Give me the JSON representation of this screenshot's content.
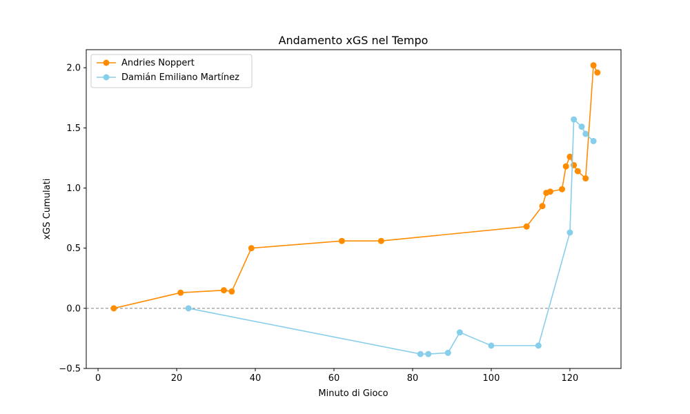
{
  "chart_data": {
    "type": "line",
    "title": "Andamento xGS nel Tempo",
    "xlabel": "Minuto di Gioco",
    "ylabel": "xGS Cumulati",
    "xlim": [
      -3,
      133
    ],
    "ylim": [
      -0.5,
      2.15
    ],
    "xticks": [
      0,
      20,
      40,
      60,
      80,
      100,
      120
    ],
    "yticks": [
      -0.5,
      0.0,
      0.5,
      1.0,
      1.5,
      2.0
    ],
    "ytick_labels": [
      "−0.5",
      "0.0",
      "0.5",
      "1.0",
      "1.5",
      "2.0"
    ],
    "grid": false,
    "legend_position": "upper-left",
    "reference_line": {
      "y": 0,
      "style": "dashed",
      "color": "#808080"
    },
    "series": [
      {
        "name": "Andries Noppert",
        "color": "#ff8c00",
        "x": [
          4,
          21,
          32,
          34,
          39,
          62,
          72,
          109,
          113,
          114,
          115,
          118,
          119,
          120,
          121,
          122,
          124,
          126,
          127
        ],
        "y": [
          0.0,
          0.13,
          0.15,
          0.14,
          0.5,
          0.56,
          0.56,
          0.68,
          0.85,
          0.96,
          0.97,
          0.99,
          1.18,
          1.26,
          1.19,
          1.14,
          1.08,
          2.02,
          1.96
        ]
      },
      {
        "name": "Damián Emiliano Martínez",
        "color": "#87ceeb",
        "x": [
          23,
          82,
          84,
          89,
          92,
          100,
          112,
          120,
          121,
          123,
          124,
          126
        ],
        "y": [
          0.0,
          -0.38,
          -0.38,
          -0.37,
          -0.2,
          -0.31,
          -0.31,
          0.63,
          1.57,
          1.51,
          1.45,
          1.39
        ]
      }
    ]
  }
}
